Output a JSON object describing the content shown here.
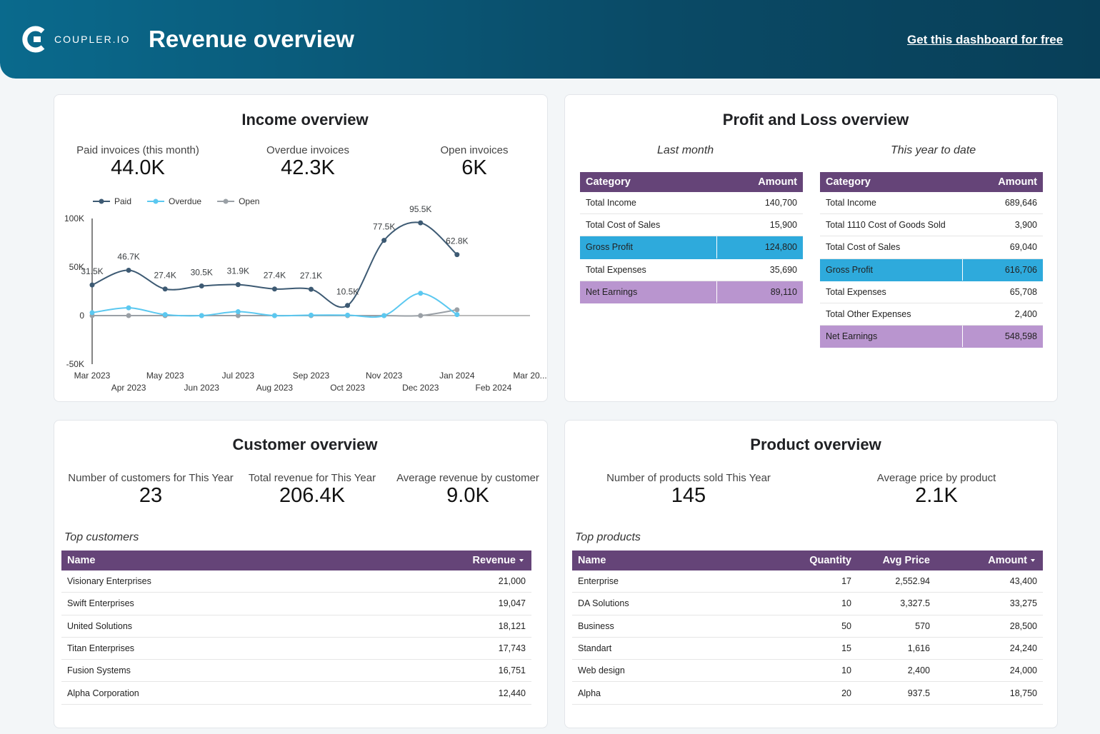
{
  "header": {
    "logo": "COUPLER.IO",
    "title": "Revenue overview",
    "link": "Get this dashboard for free"
  },
  "income": {
    "title": "Income overview",
    "kpis": [
      {
        "label": "Paid invoices (this month)",
        "value": "44.0K"
      },
      {
        "label": "Overdue invoices",
        "value": "42.3K"
      },
      {
        "label": "Open invoices",
        "value": "6K"
      }
    ]
  },
  "chart_data": {
    "type": "line",
    "categories": [
      "Mar 2023",
      "Apr 2023",
      "May 2023",
      "Jun 2023",
      "Jul 2023",
      "Aug 2023",
      "Sep 2023",
      "Oct 2023",
      "Nov 2023",
      "Dec 2023",
      "Jan 2024",
      "Feb 2024",
      "Mar 20..."
    ],
    "series": [
      {
        "name": "Paid",
        "color": "#3d5a73",
        "values": [
          31500,
          46700,
          27400,
          30500,
          31900,
          27400,
          27100,
          10500,
          77500,
          95500,
          62800,
          null,
          null
        ],
        "value_labels": [
          "31.5K",
          "46.7K",
          "27.4K",
          "30.5K",
          "31.9K",
          "27.4K",
          "27.1K",
          "10.5K",
          "77.5K",
          "95.5K",
          "62.8K",
          null,
          null
        ]
      },
      {
        "name": "Overdue",
        "color": "#5bc8f0",
        "values": [
          3000,
          8000,
          1000,
          0,
          4000,
          0,
          500,
          500,
          0,
          23000,
          1000,
          null,
          null
        ]
      },
      {
        "name": "Open",
        "color": "#9aa0a6",
        "values": [
          0,
          0,
          0,
          0,
          0,
          0,
          0,
          0,
          0,
          0,
          6000,
          null,
          null
        ]
      }
    ],
    "ylim": [
      -50000,
      100000
    ],
    "yticks": [
      {
        "value": -50000,
        "label": "-50K"
      },
      0,
      {
        "value": 50000,
        "label": "50K"
      },
      {
        "value": 100000,
        "label": "100K"
      }
    ]
  },
  "pl": {
    "title": "Profit and Loss overview",
    "last_month": {
      "caption": "Last month",
      "columns": [
        "Category",
        "Amount"
      ],
      "rows": [
        [
          "Total Income",
          "140,700"
        ],
        [
          "Total Cost of Sales",
          "15,900"
        ],
        [
          "Gross Profit",
          "124,800"
        ],
        [
          "Total Expenses",
          "35,690"
        ],
        [
          "Net Earnings",
          "89,110"
        ]
      ],
      "highlight": {
        "2": "#2eaadc",
        "4": "#b995cf"
      }
    },
    "ytd": {
      "caption": "This year to date",
      "columns": [
        "Category",
        "Amount"
      ],
      "rows": [
        [
          "Total Income",
          "689,646"
        ],
        [
          "Total 1110 Cost of Goods Sold",
          "3,900"
        ],
        [
          "Total Cost of Sales",
          "69,040"
        ],
        [
          "Gross Profit",
          "616,706"
        ],
        [
          "Total Expenses",
          "65,708"
        ],
        [
          "Total Other Expenses",
          "2,400"
        ],
        [
          "Net Earnings",
          "548,598"
        ]
      ],
      "highlight": {
        "3": "#2eaadc",
        "6": "#b995cf"
      }
    }
  },
  "customers": {
    "title": "Customer overview",
    "kpis": [
      {
        "label": "Number of customers for This Year",
        "value": "23"
      },
      {
        "label": "Total revenue for This Year",
        "value": "206.4K"
      },
      {
        "label": "Average revenue by customer",
        "value": "9.0K"
      }
    ],
    "table_title": "Top customers",
    "columns": [
      "Name",
      "Revenue"
    ],
    "rows": [
      [
        "Visionary Enterprises",
        "21,000"
      ],
      [
        "Swift Enterprises",
        "19,047"
      ],
      [
        "United Solutions",
        "18,121"
      ],
      [
        "Titan Enterprises",
        "17,743"
      ],
      [
        "Fusion Systems",
        "16,751"
      ],
      [
        "Alpha Corporation",
        "12,440"
      ]
    ]
  },
  "products": {
    "title": "Product overview",
    "kpis": [
      {
        "label": "Number of products sold This Year",
        "value": "145"
      },
      {
        "label": "Average price by product",
        "value": "2.1K"
      }
    ],
    "table_title": "Top products",
    "columns": [
      "Name",
      "Quantity",
      "Avg Price",
      "Amount"
    ],
    "rows": [
      [
        "Enterprise",
        "17",
        "2,552.94",
        "43,400"
      ],
      [
        "DA Solutions",
        "10",
        "3,327.5",
        "33,275"
      ],
      [
        "Business",
        "50",
        "570",
        "28,500"
      ],
      [
        "Standart",
        "15",
        "1,616",
        "24,240"
      ],
      [
        "Web design",
        "10",
        "2,400",
        "24,000"
      ],
      [
        "Alpha",
        "20",
        "937.5",
        "18,750"
      ]
    ]
  }
}
